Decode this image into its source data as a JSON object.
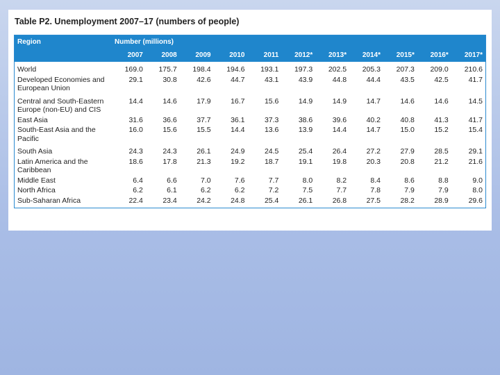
{
  "title": "Table P2. Unemployment 2007–17 (numbers of people)",
  "table": {
    "header": {
      "region": "Region",
      "group": "Number (millions)"
    },
    "columns": [
      "2007",
      "2008",
      "2009",
      "2010",
      "2011",
      "2012*",
      "2013*",
      "2014*",
      "2015*",
      "2016*",
      "2017*"
    ],
    "rows": [
      {
        "region": "World",
        "values": [
          "169.0",
          "175.7",
          "198.4",
          "194.6",
          "193.1",
          "197.3",
          "202.5",
          "205.3",
          "207.3",
          "209.0",
          "210.6"
        ]
      },
      {
        "region": "Developed Economies and European Union",
        "values": [
          "29.1",
          "30.8",
          "42.6",
          "44.7",
          "43.1",
          "43.9",
          "44.8",
          "44.4",
          "43.5",
          "42.5",
          "41.7"
        ]
      },
      {
        "region": "Central and South-Eastern Europe (non-EU) and CIS",
        "values": [
          "14.4",
          "14.6",
          "17.9",
          "16.7",
          "15.6",
          "14.9",
          "14.9",
          "14.7",
          "14.6",
          "14.6",
          "14.5"
        ]
      },
      {
        "region": "East Asia",
        "values": [
          "31.6",
          "36.6",
          "37.7",
          "36.1",
          "37.3",
          "38.6",
          "39.6",
          "40.2",
          "40.8",
          "41.3",
          "41.7"
        ]
      },
      {
        "region": "South-East Asia and the Pacific",
        "values": [
          "16.0",
          "15.6",
          "15.5",
          "14.4",
          "13.6",
          "13.9",
          "14.4",
          "14.7",
          "15.0",
          "15.2",
          "15.4"
        ]
      },
      {
        "region": "South Asia",
        "values": [
          "24.3",
          "24.3",
          "26.1",
          "24.9",
          "24.5",
          "25.4",
          "26.4",
          "27.2",
          "27.9",
          "28.5",
          "29.1"
        ]
      },
      {
        "region": "Latin America and the Caribbean",
        "values": [
          "18.6",
          "17.8",
          "21.3",
          "19.2",
          "18.7",
          "19.1",
          "19.8",
          "20.3",
          "20.8",
          "21.2",
          "21.6"
        ]
      },
      {
        "region": "Middle East",
        "values": [
          "6.4",
          "6.6",
          "7.0",
          "7.6",
          "7.7",
          "8.0",
          "8.2",
          "8.4",
          "8.6",
          "8.8",
          "9.0"
        ]
      },
      {
        "region": "North Africa",
        "values": [
          "6.2",
          "6.1",
          "6.2",
          "6.2",
          "7.2",
          "7.5",
          "7.7",
          "7.8",
          "7.9",
          "7.9",
          "8.0"
        ]
      },
      {
        "region": "Sub-Saharan Africa",
        "values": [
          "22.4",
          "23.4",
          "24.2",
          "24.8",
          "25.4",
          "26.1",
          "26.8",
          "27.5",
          "28.2",
          "28.9",
          "29.6"
        ]
      }
    ]
  }
}
